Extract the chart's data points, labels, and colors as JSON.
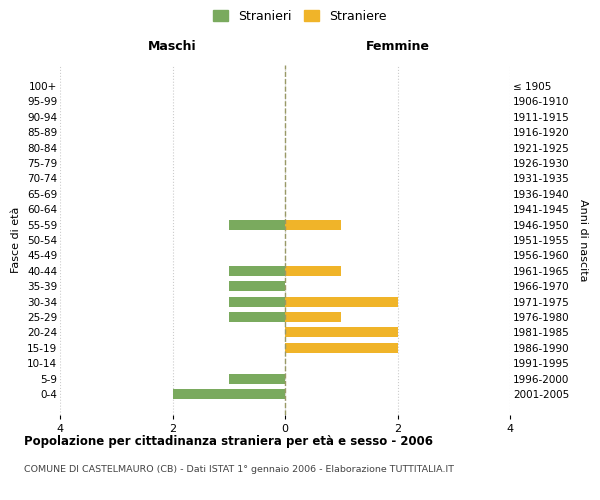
{
  "age_groups": [
    "100+",
    "95-99",
    "90-94",
    "85-89",
    "80-84",
    "75-79",
    "70-74",
    "65-69",
    "60-64",
    "55-59",
    "50-54",
    "45-49",
    "40-44",
    "35-39",
    "30-34",
    "25-29",
    "20-24",
    "15-19",
    "10-14",
    "5-9",
    "0-4"
  ],
  "birth_years": [
    "≤ 1905",
    "1906-1910",
    "1911-1915",
    "1916-1920",
    "1921-1925",
    "1926-1930",
    "1931-1935",
    "1936-1940",
    "1941-1945",
    "1946-1950",
    "1951-1955",
    "1956-1960",
    "1961-1965",
    "1966-1970",
    "1971-1975",
    "1976-1980",
    "1981-1985",
    "1986-1990",
    "1991-1995",
    "1996-2000",
    "2001-2005"
  ],
  "maschi": [
    0,
    0,
    0,
    0,
    0,
    0,
    0,
    0,
    0,
    1,
    0,
    0,
    1,
    1,
    1,
    1,
    0,
    0,
    0,
    1,
    2
  ],
  "femmine": [
    0,
    0,
    0,
    0,
    0,
    0,
    0,
    0,
    0,
    1,
    0,
    0,
    1,
    0,
    2,
    1,
    2,
    2,
    0,
    0,
    0
  ],
  "color_maschi": "#7aaa5e",
  "color_femmine": "#f0b429",
  "title_main": "Popolazione per cittadinanza straniera per età e sesso - 2006",
  "title_sub": "COMUNE DI CASTELMAURO (CB) - Dati ISTAT 1° gennaio 2006 - Elaborazione TUTTITALIA.IT",
  "xlabel_left": "Maschi",
  "xlabel_right": "Femmine",
  "ylabel_left": "Fasce di età",
  "ylabel_right": "Anni di nascita",
  "legend_maschi": "Stranieri",
  "legend_femmine": "Straniere",
  "xlim": 4,
  "background_color": "#ffffff",
  "grid_color": "#cccccc"
}
